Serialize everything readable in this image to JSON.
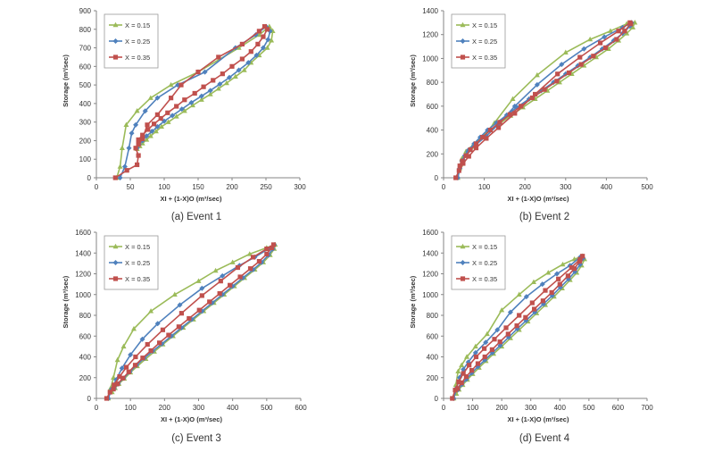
{
  "figure": {
    "series_colors": [
      "#9BBB59",
      "#4F81BD",
      "#C0504D"
    ],
    "series_markers": [
      "triangle",
      "diamond",
      "square"
    ]
  },
  "chart_data": [
    {
      "type": "line",
      "caption": "(a) Event 1",
      "xlabel": "XI + (1-X)O (m³/sec)",
      "ylabel": "Storage  (m³/sec)",
      "xlim": [
        0,
        300
      ],
      "ylim": [
        0,
        900
      ],
      "xticks": [
        "0",
        "50",
        "100",
        "150",
        "200",
        "250",
        "300"
      ],
      "yticks": [
        "0",
        "100",
        "200",
        "300",
        "400",
        "500",
        "600",
        "700",
        "800",
        "900"
      ],
      "legend": "top-left",
      "series": [
        {
          "name": "X = 0.15",
          "x": [
            30,
            35,
            38,
            44,
            60,
            80,
            110,
            150,
            210,
            240,
            255,
            260,
            258,
            252,
            240,
            228,
            218,
            205,
            192,
            180,
            168,
            155,
            142,
            130,
            118,
            106,
            96,
            88,
            80,
            74,
            68,
            64,
            60
          ],
          "y": [
            0,
            60,
            160,
            285,
            360,
            430,
            500,
            570,
            700,
            770,
            815,
            790,
            740,
            700,
            660,
            620,
            580,
            545,
            510,
            480,
            450,
            420,
            390,
            360,
            330,
            300,
            275,
            250,
            225,
            205,
            185,
            170,
            155
          ]
        },
        {
          "name": "X = 0.25",
          "x": [
            35,
            42,
            48,
            52,
            58,
            72,
            90,
            120,
            160,
            205,
            235,
            250,
            256,
            253,
            246,
            236,
            224,
            210,
            196,
            182,
            168,
            155,
            140,
            126,
            112,
            100,
            90,
            82,
            74,
            68,
            63,
            60
          ],
          "y": [
            0,
            60,
            160,
            240,
            285,
            360,
            430,
            500,
            570,
            700,
            770,
            815,
            790,
            745,
            700,
            660,
            620,
            580,
            540,
            505,
            470,
            440,
            405,
            370,
            335,
            305,
            275,
            250,
            225,
            200,
            180,
            160
          ]
        },
        {
          "name": "X = 0.35",
          "x": [
            28,
            45,
            60,
            62,
            58,
            62,
            68,
            75,
            90,
            110,
            125,
            150,
            180,
            215,
            240,
            248,
            252,
            246,
            238,
            228,
            215,
            200,
            186,
            172,
            158,
            145,
            130,
            118,
            105,
            95,
            85,
            76,
            68,
            62
          ],
          "y": [
            0,
            40,
            70,
            120,
            160,
            180,
            210,
            285,
            340,
            430,
            500,
            570,
            650,
            720,
            790,
            815,
            800,
            760,
            720,
            680,
            640,
            600,
            560,
            525,
            490,
            455,
            420,
            385,
            350,
            320,
            290,
            260,
            230,
            205
          ]
        }
      ]
    },
    {
      "type": "line",
      "caption": "(b) Event 2",
      "xlabel": "XI + (1-X)O (m³/sec)",
      "ylabel": "Storage  (m³/sec)",
      "xlim": [
        0,
        500
      ],
      "ylim": [
        0,
        1400
      ],
      "xticks": [
        "0",
        "100",
        "200",
        "300",
        "400",
        "500"
      ],
      "yticks": [
        "0",
        "200",
        "400",
        "600",
        "800",
        "1000",
        "1200",
        "1400"
      ],
      "legend": "top-left",
      "series": [
        {
          "name": "X = 0.15",
          "x": [
            35,
            40,
            45,
            55,
            70,
            95,
            125,
            170,
            230,
            300,
            360,
            410,
            450,
            470,
            465,
            450,
            430,
            405,
            375,
            345,
            315,
            285,
            255,
            225,
            195,
            165,
            140,
            115,
            95,
            80,
            65,
            55,
            48,
            42
          ],
          "y": [
            0,
            80,
            160,
            220,
            260,
            340,
            460,
            660,
            860,
            1050,
            1160,
            1230,
            1290,
            1300,
            1260,
            1210,
            1150,
            1080,
            1010,
            940,
            870,
            800,
            730,
            660,
            590,
            520,
            460,
            400,
            340,
            290,
            240,
            190,
            150,
            110
          ]
        },
        {
          "name": "X = 0.25",
          "x": [
            35,
            40,
            48,
            60,
            80,
            105,
            135,
            175,
            230,
            290,
            345,
            395,
            440,
            462,
            458,
            440,
            418,
            390,
            360,
            330,
            300,
            270,
            240,
            210,
            180,
            155,
            130,
            108,
            90,
            75,
            62,
            52,
            45
          ],
          "y": [
            0,
            80,
            150,
            220,
            280,
            350,
            450,
            600,
            780,
            950,
            1080,
            1180,
            1260,
            1300,
            1270,
            1210,
            1150,
            1080,
            1010,
            940,
            870,
            800,
            730,
            660,
            590,
            525,
            460,
            400,
            340,
            285,
            235,
            185,
            140
          ]
        },
        {
          "name": "X = 0.35",
          "x": [
            30,
            38,
            48,
            62,
            80,
            105,
            135,
            175,
            225,
            280,
            335,
            385,
            430,
            458,
            460,
            445,
            425,
            398,
            368,
            338,
            308,
            278,
            248,
            218,
            190,
            163,
            138,
            115,
            96,
            80,
            66,
            55,
            46,
            40
          ],
          "y": [
            0,
            60,
            120,
            180,
            250,
            330,
            420,
            540,
            700,
            870,
            1010,
            1130,
            1230,
            1300,
            1290,
            1230,
            1160,
            1090,
            1020,
            950,
            880,
            810,
            740,
            670,
            600,
            530,
            465,
            400,
            340,
            285,
            235,
            185,
            140,
            100
          ]
        }
      ]
    },
    {
      "type": "line",
      "caption": "(c) Event 3",
      "xlabel": "XI + (1-X)O (m³/sec)",
      "ylabel": "Storage  (m³/sec)",
      "xlim": [
        0,
        600
      ],
      "ylim": [
        0,
        1600
      ],
      "xticks": [
        "0",
        "100",
        "200",
        "300",
        "400",
        "500",
        "600"
      ],
      "yticks": [
        "0",
        "200",
        "400",
        "600",
        "800",
        "1000",
        "1200",
        "1400",
        "1600"
      ],
      "legend": "top-left",
      "series": [
        {
          "name": "X = 0.15",
          "x": [
            35,
            42,
            50,
            62,
            80,
            110,
            160,
            230,
            300,
            350,
            400,
            450,
            500,
            525,
            522,
            510,
            490,
            465,
            435,
            405,
            375,
            345,
            315,
            285,
            255,
            225,
            195,
            170,
            145,
            120,
            100,
            82,
            66,
            55,
            46
          ],
          "y": [
            0,
            100,
            200,
            370,
            500,
            670,
            840,
            1000,
            1130,
            1230,
            1310,
            1390,
            1450,
            1480,
            1440,
            1380,
            1310,
            1240,
            1160,
            1080,
            1000,
            920,
            840,
            760,
            680,
            600,
            520,
            450,
            380,
            310,
            250,
            190,
            140,
            100,
            60
          ]
        },
        {
          "name": "X = 0.25",
          "x": [
            35,
            45,
            58,
            75,
            100,
            135,
            180,
            245,
            310,
            370,
            420,
            465,
            505,
            522,
            518,
            505,
            485,
            460,
            430,
            400,
            370,
            340,
            310,
            280,
            250,
            220,
            192,
            165,
            140,
            118,
            98,
            80,
            64,
            52
          ],
          "y": [
            0,
            90,
            180,
            290,
            420,
            570,
            720,
            900,
            1060,
            1180,
            1280,
            1360,
            1440,
            1480,
            1440,
            1380,
            1310,
            1240,
            1160,
            1080,
            1000,
            920,
            840,
            760,
            680,
            600,
            525,
            455,
            385,
            320,
            255,
            195,
            140,
            90
          ]
        },
        {
          "name": "X = 0.35",
          "x": [
            30,
            40,
            52,
            68,
            88,
            115,
            150,
            195,
            250,
            310,
            365,
            415,
            460,
            500,
            520,
            515,
            500,
            478,
            452,
            422,
            392,
            362,
            332,
            302,
            272,
            242,
            212,
            185,
            160,
            136,
            114,
            95,
            78,
            62,
            50
          ],
          "y": [
            0,
            60,
            130,
            210,
            300,
            400,
            520,
            660,
            820,
            990,
            1130,
            1260,
            1360,
            1440,
            1480,
            1450,
            1390,
            1320,
            1250,
            1170,
            1090,
            1010,
            930,
            850,
            770,
            690,
            610,
            535,
            460,
            390,
            320,
            255,
            195,
            140,
            90
          ]
        }
      ]
    },
    {
      "type": "line",
      "caption": "(d) Event 4",
      "xlabel": "XI + (1-X)O (m³/sec)",
      "ylabel": "Storage  (m³/sec)",
      "xlim": [
        0,
        700
      ],
      "ylim": [
        0,
        1600
      ],
      "xticks": [
        "0",
        "100",
        "200",
        "300",
        "400",
        "500",
        "600",
        "700"
      ],
      "yticks": [
        "0",
        "200",
        "400",
        "600",
        "800",
        "1000",
        "1200",
        "1400",
        "1600"
      ],
      "legend": "top-left",
      "series": [
        {
          "name": "X = 0.15",
          "x": [
            35,
            42,
            50,
            62,
            80,
            110,
            150,
            200,
            260,
            310,
            360,
            410,
            450,
            478,
            485,
            475,
            458,
            435,
            408,
            380,
            350,
            320,
            290,
            260,
            230,
            200,
            172,
            146,
            122,
            100,
            82,
            66,
            53,
            44
          ],
          "y": [
            0,
            130,
            260,
            320,
            400,
            500,
            620,
            850,
            1000,
            1120,
            1210,
            1290,
            1340,
            1370,
            1340,
            1280,
            1210,
            1140,
            1060,
            980,
            900,
            820,
            740,
            660,
            580,
            500,
            430,
            360,
            295,
            235,
            180,
            130,
            85,
            45
          ]
        },
        {
          "name": "X = 0.25",
          "x": [
            35,
            45,
            55,
            68,
            85,
            110,
            145,
            185,
            230,
            285,
            340,
            390,
            435,
            470,
            480,
            470,
            452,
            430,
            402,
            374,
            344,
            314,
            284,
            254,
            224,
            195,
            168,
            142,
            118,
            97,
            79,
            63,
            50
          ],
          "y": [
            0,
            100,
            200,
            280,
            350,
            440,
            540,
            660,
            830,
            980,
            1100,
            1200,
            1280,
            1360,
            1350,
            1290,
            1220,
            1150,
            1070,
            990,
            910,
            830,
            750,
            670,
            590,
            510,
            440,
            370,
            305,
            245,
            185,
            135,
            85
          ]
        },
        {
          "name": "X = 0.35",
          "x": [
            30,
            40,
            52,
            68,
            88,
            112,
            140,
            175,
            215,
            260,
            305,
            350,
            395,
            440,
            470,
            478,
            468,
            450,
            428,
            400,
            372,
            342,
            312,
            282,
            252,
            222,
            194,
            167,
            142,
            118,
            97,
            78,
            62,
            48
          ],
          "y": [
            0,
            80,
            160,
            240,
            320,
            400,
            480,
            570,
            680,
            800,
            920,
            1040,
            1150,
            1260,
            1340,
            1370,
            1320,
            1250,
            1180,
            1100,
            1020,
            940,
            860,
            780,
            700,
            620,
            545,
            470,
            400,
            335,
            270,
            210,
            150,
            95
          ]
        }
      ]
    }
  ]
}
